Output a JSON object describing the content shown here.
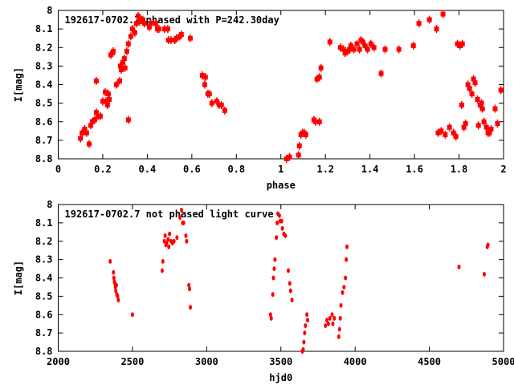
{
  "colors": {
    "points": "#ff0000",
    "axes": "#000000"
  },
  "chart_data": [
    {
      "type": "scatter",
      "title": "192617-0702.7 phased with P=242.30day",
      "xlabel": "phase",
      "ylabel": "I[mag]",
      "xlim": [
        0,
        2
      ],
      "ylim": [
        8.8,
        8
      ],
      "y_inverted": true,
      "xticks": [
        "0",
        "0.2",
        "0.4",
        "0.6",
        "0.8",
        "1",
        "1.2",
        "1.4",
        "1.6",
        "1.8",
        "2"
      ],
      "xtick_values": [
        0,
        0.2,
        0.4,
        0.6,
        0.8,
        1,
        1.2,
        1.4,
        1.6,
        1.8,
        2
      ],
      "yticks": [
        "8",
        "8.1",
        "8.2",
        "8.3",
        "8.4",
        "8.5",
        "8.6",
        "8.7",
        "8.8"
      ],
      "ytick_values": [
        8,
        8.1,
        8.2,
        8.3,
        8.4,
        8.5,
        8.6,
        8.7,
        8.8
      ],
      "grid": false,
      "marker": "square-errorbar",
      "points": [
        [
          0.1,
          8.69
        ],
        [
          0.107,
          8.66
        ],
        [
          0.119,
          8.64
        ],
        [
          0.128,
          8.66
        ],
        [
          0.139,
          8.72
        ],
        [
          0.146,
          8.62
        ],
        [
          0.153,
          8.6
        ],
        [
          0.164,
          8.59
        ],
        [
          0.171,
          8.55
        ],
        [
          0.179,
          8.57
        ],
        [
          0.171,
          8.38
        ],
        [
          0.189,
          8.57
        ],
        [
          0.2,
          8.49
        ],
        [
          0.211,
          8.44
        ],
        [
          0.214,
          8.49
        ],
        [
          0.225,
          8.45
        ],
        [
          0.221,
          8.51
        ],
        [
          0.229,
          8.48
        ],
        [
          0.236,
          8.24
        ],
        [
          0.243,
          8.23
        ],
        [
          0.247,
          8.22
        ],
        [
          0.261,
          8.4
        ],
        [
          0.276,
          8.38
        ],
        [
          0.283,
          8.32
        ],
        [
          0.279,
          8.3
        ],
        [
          0.29,
          8.28
        ],
        [
          0.297,
          8.26
        ],
        [
          0.3,
          8.31
        ],
        [
          0.308,
          8.22
        ],
        [
          0.315,
          8.59
        ],
        [
          0.315,
          8.18
        ],
        [
          0.326,
          8.14
        ],
        [
          0.333,
          8.1
        ],
        [
          0.344,
          8.12
        ],
        [
          0.351,
          8.07
        ],
        [
          0.359,
          8.03
        ],
        [
          0.366,
          8.06
        ],
        [
          0.373,
          8.05
        ],
        [
          0.38,
          8.05
        ],
        [
          0.387,
          8.07
        ],
        [
          0.409,
          8.09
        ],
        [
          0.416,
          8.07
        ],
        [
          0.438,
          8.07
        ],
        [
          0.445,
          8.1
        ],
        [
          0.452,
          8.1
        ],
        [
          0.477,
          8.1
        ],
        [
          0.492,
          8.1
        ],
        [
          0.495,
          8.16
        ],
        [
          0.506,
          8.16
        ],
        [
          0.524,
          8.16
        ],
        [
          0.531,
          8.15
        ],
        [
          0.546,
          8.14
        ],
        [
          0.553,
          8.13
        ],
        [
          0.593,
          8.15
        ],
        [
          0.647,
          8.35
        ],
        [
          0.661,
          8.36
        ],
        [
          0.658,
          8.4
        ],
        [
          0.672,
          8.45
        ],
        [
          0.679,
          8.45
        ],
        [
          0.69,
          8.5
        ],
        [
          0.712,
          8.49
        ],
        [
          0.723,
          8.51
        ],
        [
          0.733,
          8.51
        ],
        [
          0.748,
          8.54
        ],
        [
          1.025,
          8.8
        ],
        [
          1.039,
          8.79
        ],
        [
          1.079,
          8.78
        ],
        [
          1.083,
          8.73
        ],
        [
          1.09,
          8.67
        ],
        [
          1.097,
          8.66
        ],
        [
          1.105,
          8.66
        ],
        [
          1.112,
          8.67
        ],
        [
          1.148,
          8.59
        ],
        [
          1.155,
          8.6
        ],
        [
          1.173,
          8.6
        ],
        [
          1.162,
          8.37
        ],
        [
          1.173,
          8.36
        ],
        [
          1.18,
          8.31
        ],
        [
          1.22,
          8.17
        ],
        [
          1.267,
          8.2
        ],
        [
          1.281,
          8.21
        ],
        [
          1.288,
          8.23
        ],
        [
          1.299,
          8.22
        ],
        [
          1.31,
          8.21
        ],
        [
          1.314,
          8.19
        ],
        [
          1.328,
          8.21
        ],
        [
          1.342,
          8.18
        ],
        [
          1.353,
          8.21
        ],
        [
          1.36,
          8.16
        ],
        [
          1.368,
          8.17
        ],
        [
          1.378,
          8.19
        ],
        [
          1.389,
          8.21
        ],
        [
          1.404,
          8.18
        ],
        [
          1.418,
          8.2
        ],
        [
          1.45,
          8.34
        ],
        [
          1.468,
          8.21
        ],
        [
          1.53,
          8.21
        ],
        [
          1.595,
          8.19
        ],
        [
          1.62,
          8.07
        ],
        [
          1.667,
          8.05
        ],
        [
          1.699,
          8.1
        ],
        [
          1.728,
          8.02
        ],
        [
          1.706,
          8.66
        ],
        [
          1.72,
          8.65
        ],
        [
          1.738,
          8.67
        ],
        [
          1.757,
          8.63
        ],
        [
          1.775,
          8.66
        ],
        [
          1.786,
          8.68
        ],
        [
          1.793,
          8.18
        ],
        [
          1.804,
          8.19
        ],
        [
          1.815,
          8.18
        ],
        [
          1.812,
          8.51
        ],
        [
          1.822,
          8.63
        ],
        [
          1.829,
          8.61
        ],
        [
          1.84,
          8.4
        ],
        [
          1.847,
          8.42
        ],
        [
          1.865,
          8.37
        ],
        [
          1.858,
          8.45
        ],
        [
          1.872,
          8.39
        ],
        [
          1.883,
          8.48
        ],
        [
          1.887,
          8.62
        ],
        [
          1.895,
          8.51
        ],
        [
          1.901,
          8.5
        ],
        [
          1.905,
          8.53
        ],
        [
          1.912,
          8.6
        ],
        [
          1.923,
          8.63
        ],
        [
          1.93,
          8.66
        ],
        [
          1.937,
          8.66
        ],
        [
          1.944,
          8.64
        ],
        [
          1.962,
          8.53
        ],
        [
          1.973,
          8.61
        ],
        [
          1.988,
          8.43
        ]
      ]
    },
    {
      "type": "scatter",
      "title": "192617-0702.7 not phased light curve",
      "xlabel": "hjd0",
      "ylabel": "I[mag]",
      "xlim": [
        2000,
        5000
      ],
      "ylim": [
        8.8,
        8
      ],
      "y_inverted": true,
      "xticks": [
        "2000",
        "2500",
        "3000",
        "3500",
        "4000",
        "4500",
        "5000"
      ],
      "xtick_values": [
        2000,
        2500,
        3000,
        3500,
        4000,
        4500,
        5000
      ],
      "yticks": [
        "8",
        "8.1",
        "8.2",
        "8.3",
        "8.4",
        "8.5",
        "8.6",
        "8.7",
        "8.8"
      ],
      "ytick_values": [
        8,
        8.1,
        8.2,
        8.3,
        8.4,
        8.5,
        8.6,
        8.7,
        8.8
      ],
      "grid": false,
      "marker": "ellipse",
      "points": [
        [
          2350,
          8.31
        ],
        [
          2372,
          8.37
        ],
        [
          2375,
          8.4
        ],
        [
          2378,
          8.42
        ],
        [
          2382,
          8.43
        ],
        [
          2385,
          8.45
        ],
        [
          2388,
          8.47
        ],
        [
          2392,
          8.44
        ],
        [
          2395,
          8.49
        ],
        [
          2400,
          8.5
        ],
        [
          2405,
          8.52
        ],
        [
          2500,
          8.6
        ],
        [
          2700,
          8.36
        ],
        [
          2705,
          8.31
        ],
        [
          2715,
          8.2
        ],
        [
          2720,
          8.17
        ],
        [
          2725,
          8.22
        ],
        [
          2730,
          8.21
        ],
        [
          2740,
          8.19
        ],
        [
          2745,
          8.23
        ],
        [
          2750,
          8.16
        ],
        [
          2760,
          8.2
        ],
        [
          2770,
          8.21
        ],
        [
          2780,
          8.2
        ],
        [
          2800,
          8.18
        ],
        [
          2820,
          8.07
        ],
        [
          2830,
          8.03
        ],
        [
          2838,
          8.1
        ],
        [
          2845,
          8.1
        ],
        [
          2860,
          8.17
        ],
        [
          2865,
          8.2
        ],
        [
          2880,
          8.44
        ],
        [
          2885,
          8.46
        ],
        [
          2890,
          8.56
        ],
        [
          3430,
          8.6
        ],
        [
          3435,
          8.62
        ],
        [
          3445,
          8.49
        ],
        [
          3450,
          8.4
        ],
        [
          3455,
          8.35
        ],
        [
          3460,
          8.3
        ],
        [
          3470,
          8.18
        ],
        [
          3475,
          8.1
        ],
        [
          3480,
          8.05
        ],
        [
          3490,
          8.06
        ],
        [
          3495,
          8.09
        ],
        [
          3505,
          8.09
        ],
        [
          3510,
          8.13
        ],
        [
          3520,
          8.16
        ],
        [
          3530,
          8.17
        ],
        [
          3550,
          8.36
        ],
        [
          3560,
          8.43
        ],
        [
          3565,
          8.47
        ],
        [
          3575,
          8.52
        ],
        [
          3645,
          8.8
        ],
        [
          3650,
          8.79
        ],
        [
          3655,
          8.75
        ],
        [
          3660,
          8.7
        ],
        [
          3665,
          8.66
        ],
        [
          3675,
          8.6
        ],
        [
          3680,
          8.63
        ],
        [
          3800,
          8.66
        ],
        [
          3810,
          8.63
        ],
        [
          3820,
          8.65
        ],
        [
          3830,
          8.62
        ],
        [
          3845,
          8.6
        ],
        [
          3850,
          8.65
        ],
        [
          3860,
          8.62
        ],
        [
          3890,
          8.72
        ],
        [
          3895,
          8.68
        ],
        [
          3900,
          8.62
        ],
        [
          3905,
          8.55
        ],
        [
          3915,
          8.48
        ],
        [
          3925,
          8.45
        ],
        [
          3935,
          8.4
        ],
        [
          3940,
          8.3
        ],
        [
          3945,
          8.23
        ],
        [
          4700,
          8.34
        ],
        [
          4870,
          8.38
        ],
        [
          4890,
          8.23
        ],
        [
          4895,
          8.22
        ]
      ]
    }
  ]
}
